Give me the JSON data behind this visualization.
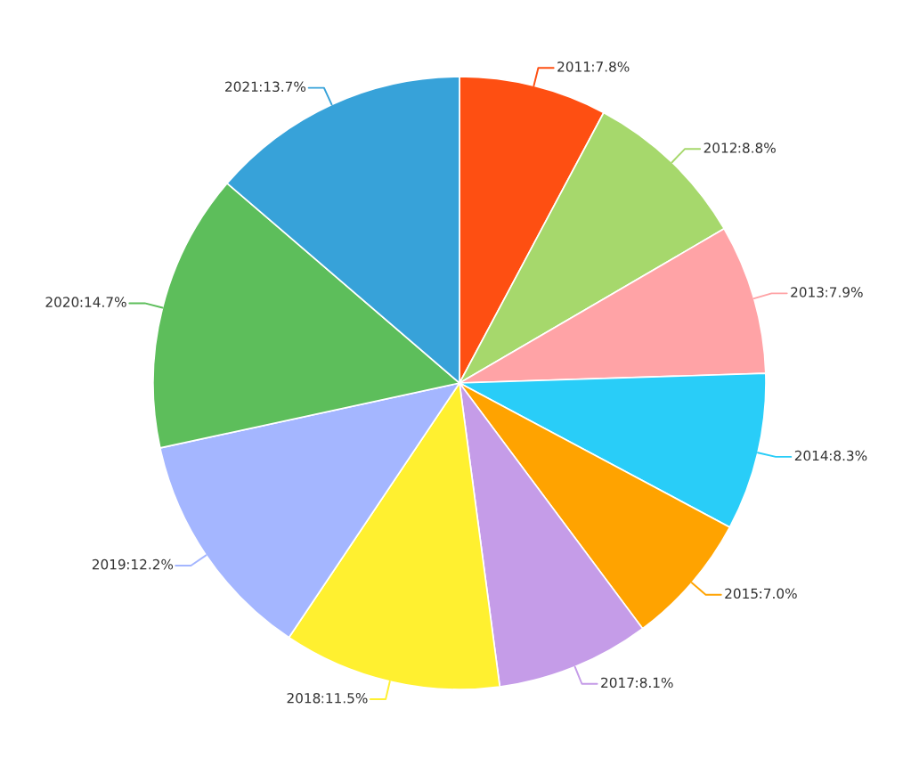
{
  "chart_data": {
    "type": "pie",
    "categories": [
      "2011",
      "2012",
      "2013",
      "2014",
      "2015",
      "2017",
      "2018",
      "2019",
      "2020",
      "2021"
    ],
    "values": [
      7.8,
      8.8,
      7.9,
      8.3,
      7.0,
      8.1,
      11.5,
      12.2,
      14.7,
      13.7
    ],
    "value_labels": [
      ":7.8%",
      ":8.8%",
      ":7.9%",
      ":8.3%",
      ":7.0%",
      ":8.1%",
      ":11.5%",
      ":12.2%",
      ":14.7%",
      ":13.7%"
    ],
    "colors": [
      "#fe4f12",
      "#a6d86c",
      "#ffa3a6",
      "#29cdf8",
      "#ffa300",
      "#c59ce8",
      "#fff030",
      "#a4b6ff",
      "#5dbe5b",
      "#37a2d9"
    ]
  }
}
